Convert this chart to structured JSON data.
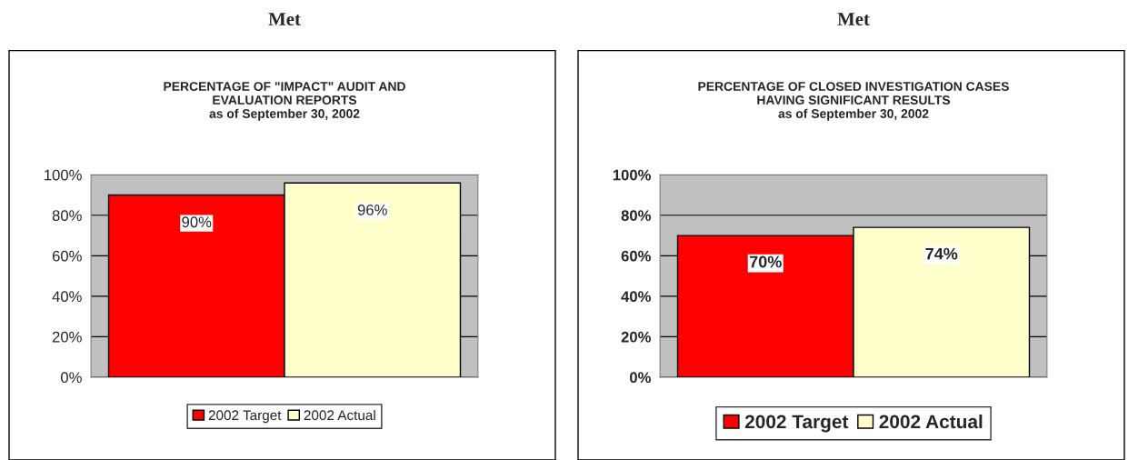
{
  "chart_data": [
    {
      "type": "bar",
      "title": "PERCENTAGE OF \"IMPACT\" AUDIT AND\nEVALUATION REPORTS\nas of September 30, 2002",
      "annotations": [
        "Met"
      ],
      "categories": [
        null
      ],
      "series": [
        {
          "name": "2002 Target",
          "color": "#ff0000",
          "values": [
            90
          ],
          "value_labels": [
            "90%"
          ]
        },
        {
          "name": "2002 Actual",
          "color": "#ffffcc",
          "values": [
            96
          ],
          "value_labels": [
            "96%"
          ]
        }
      ],
      "ylim": [
        0,
        100
      ],
      "yticks": [
        {
          "value": 0,
          "label": "0%"
        },
        {
          "value": 20,
          "label": "20%"
        },
        {
          "value": 40,
          "label": "40%"
        },
        {
          "value": 60,
          "label": "60%"
        },
        {
          "value": 80,
          "label": "80%"
        },
        {
          "value": 100,
          "label": "100%"
        }
      ],
      "grid": "y",
      "legend": "bottom"
    },
    {
      "type": "bar",
      "title": "PERCENTAGE OF CLOSED INVESTIGATION CASES\nHAVING SIGNIFICANT RESULTS\nas of September 30, 2002",
      "annotations": [
        "Met"
      ],
      "categories": [
        null
      ],
      "series": [
        {
          "name": "2002 Target",
          "color": "#ff0000",
          "values": [
            70
          ],
          "value_labels": [
            "70%"
          ]
        },
        {
          "name": "2002 Actual",
          "color": "#ffffcc",
          "values": [
            74
          ],
          "value_labels": [
            "74%"
          ]
        }
      ],
      "ylim": [
        0,
        100
      ],
      "yticks": [
        {
          "value": 0,
          "label": "0%"
        },
        {
          "value": 20,
          "label": "20%"
        },
        {
          "value": 40,
          "label": "40%"
        },
        {
          "value": 60,
          "label": "60%"
        },
        {
          "value": 80,
          "label": "80%"
        },
        {
          "value": 100,
          "label": "100%"
        }
      ],
      "grid": "y",
      "legend": "bottom"
    }
  ]
}
